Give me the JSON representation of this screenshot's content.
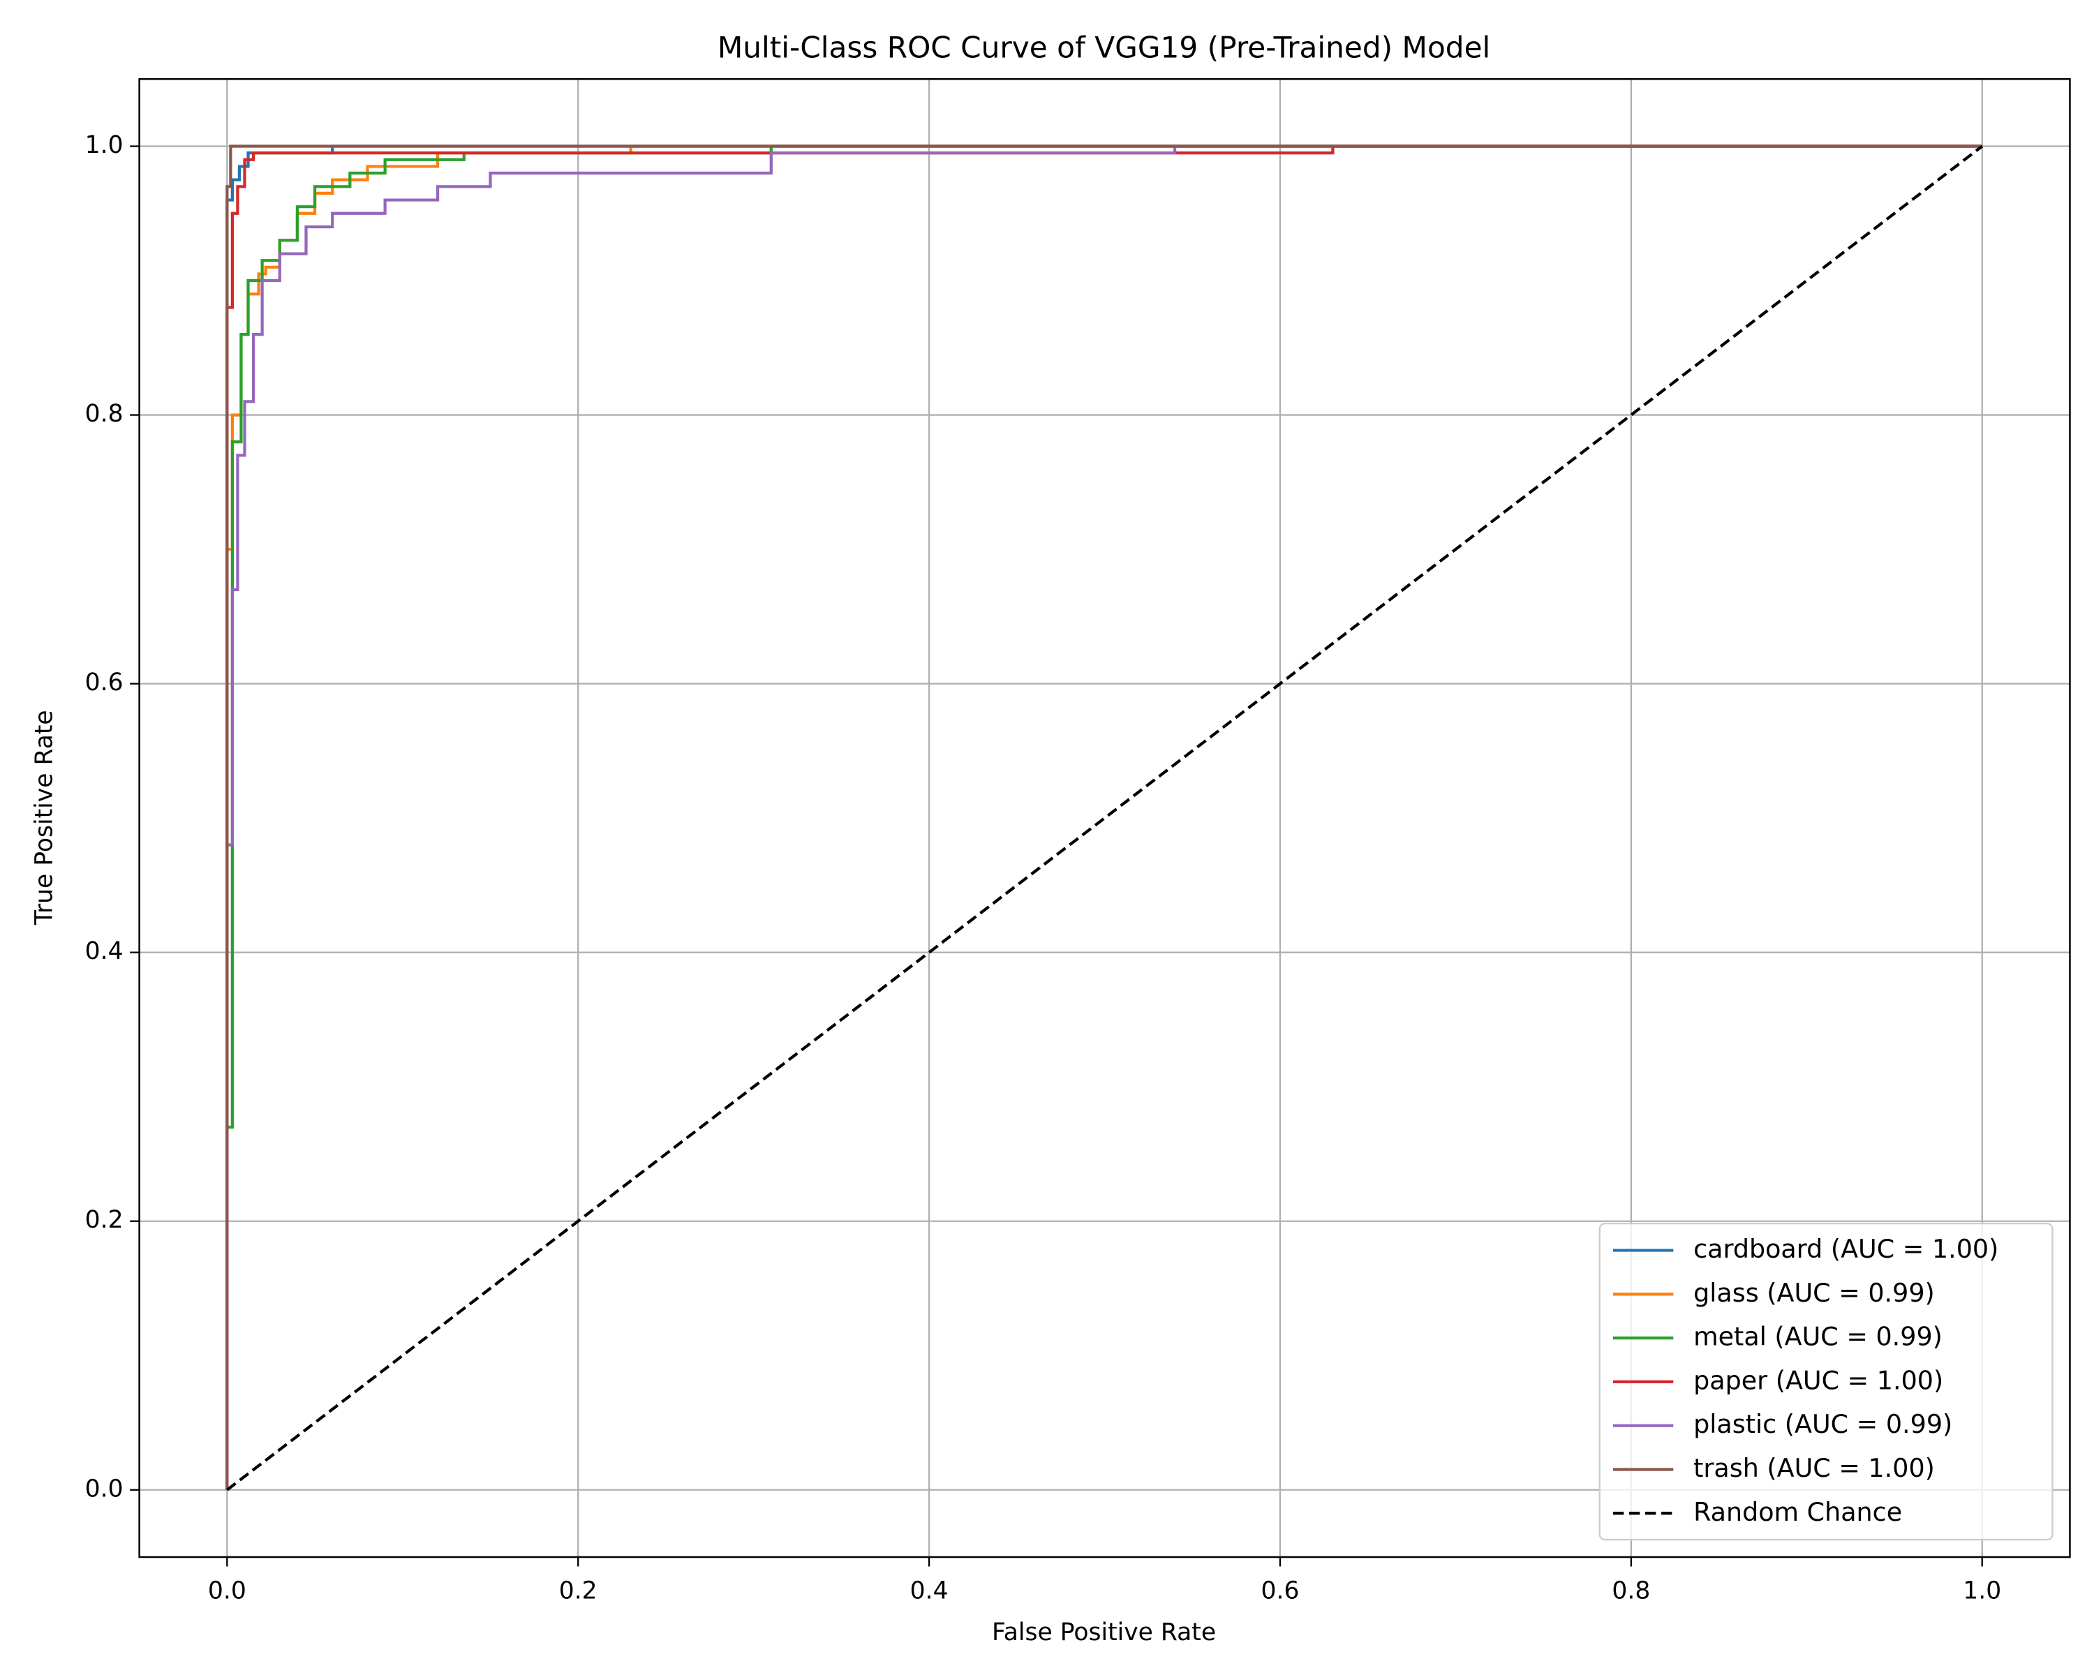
{
  "chart_data": {
    "type": "line",
    "title": "Multi-Class ROC Curve of VGG19 (Pre-Trained) Model",
    "x_label": "False Positive Rate",
    "y_label": "True Positive Rate",
    "xlim": [
      -0.05,
      1.05
    ],
    "ylim": [
      -0.05,
      1.05
    ],
    "xticks": [
      {
        "value": 0,
        "label": "0.0"
      },
      0.2,
      0.4,
      0.6,
      0.8,
      {
        "value": 1,
        "label": "1.0"
      }
    ],
    "yticks": [
      {
        "value": 0,
        "label": "0.0"
      },
      0.2,
      0.4,
      0.6,
      0.8,
      {
        "value": 1,
        "label": "1.0"
      }
    ],
    "grid": true,
    "legend_position": "lower right",
    "series": [
      {
        "name": "cardboard (AUC = 1.00)",
        "color": "#1f77b4",
        "x": [
          0,
          0,
          0.003,
          0.003,
          0.007,
          0.007,
          0.012,
          0.012,
          0.06,
          0.06,
          1
        ],
        "values": [
          0,
          0.96,
          0.96,
          0.975,
          0.975,
          0.985,
          0.985,
          0.995,
          0.995,
          1,
          1
        ]
      },
      {
        "name": "glass (AUC = 0.99)",
        "color": "#ff7f0e",
        "x": [
          0,
          0,
          0.003,
          0.003,
          0.008,
          0.008,
          0.012,
          0.012,
          0.018,
          0.018,
          0.022,
          0.022,
          0.03,
          0.03,
          0.04,
          0.04,
          0.05,
          0.05,
          0.06,
          0.06,
          0.08,
          0.08,
          0.12,
          0.12,
          0.23,
          0.23,
          1
        ],
        "values": [
          0,
          0.7,
          0.7,
          0.8,
          0.8,
          0.86,
          0.86,
          0.89,
          0.89,
          0.905,
          0.905,
          0.91,
          0.91,
          0.93,
          0.93,
          0.95,
          0.95,
          0.965,
          0.965,
          0.975,
          0.975,
          0.985,
          0.985,
          0.995,
          0.995,
          1,
          1
        ]
      },
      {
        "name": "metal (AUC = 0.99)",
        "color": "#2ca02c",
        "x": [
          0,
          0,
          0.003,
          0.003,
          0.008,
          0.008,
          0.012,
          0.012,
          0.02,
          0.02,
          0.03,
          0.03,
          0.04,
          0.04,
          0.05,
          0.05,
          0.07,
          0.07,
          0.09,
          0.09,
          0.135,
          0.135,
          0.31,
          0.31,
          1
        ],
        "values": [
          0,
          0.27,
          0.27,
          0.78,
          0.78,
          0.86,
          0.86,
          0.9,
          0.9,
          0.915,
          0.915,
          0.93,
          0.93,
          0.955,
          0.955,
          0.97,
          0.97,
          0.98,
          0.98,
          0.99,
          0.99,
          0.995,
          0.995,
          1,
          1
        ]
      },
      {
        "name": "paper (AUC = 1.00)",
        "color": "#d62728",
        "x": [
          0,
          0,
          0.003,
          0.003,
          0.006,
          0.006,
          0.01,
          0.01,
          0.015,
          0.015,
          0.63,
          0.63,
          1
        ],
        "values": [
          0,
          0.88,
          0.88,
          0.95,
          0.95,
          0.97,
          0.97,
          0.99,
          0.99,
          0.995,
          0.995,
          1,
          1
        ]
      },
      {
        "name": "plastic (AUC = 0.99)",
        "color": "#9467bd",
        "x": [
          0,
          0,
          0.003,
          0.003,
          0.006,
          0.006,
          0.01,
          0.01,
          0.015,
          0.015,
          0.02,
          0.02,
          0.03,
          0.03,
          0.045,
          0.045,
          0.06,
          0.06,
          0.09,
          0.09,
          0.12,
          0.12,
          0.15,
          0.15,
          0.31,
          0.31,
          0.54,
          0.54,
          1
        ],
        "values": [
          0,
          0.48,
          0.48,
          0.67,
          0.67,
          0.77,
          0.77,
          0.81,
          0.81,
          0.86,
          0.86,
          0.9,
          0.9,
          0.92,
          0.92,
          0.94,
          0.94,
          0.95,
          0.95,
          0.96,
          0.96,
          0.97,
          0.97,
          0.98,
          0.98,
          0.995,
          0.995,
          1,
          1
        ]
      },
      {
        "name": "trash (AUC = 1.00)",
        "color": "#8c564b",
        "x": [
          0,
          0,
          0.002,
          0.002,
          1
        ],
        "values": [
          0,
          0.97,
          0.97,
          1,
          1
        ]
      },
      {
        "name": "Random Chance",
        "color": "#000000",
        "dashed": true,
        "x": [
          0,
          1
        ],
        "values": [
          0,
          1
        ]
      }
    ]
  }
}
